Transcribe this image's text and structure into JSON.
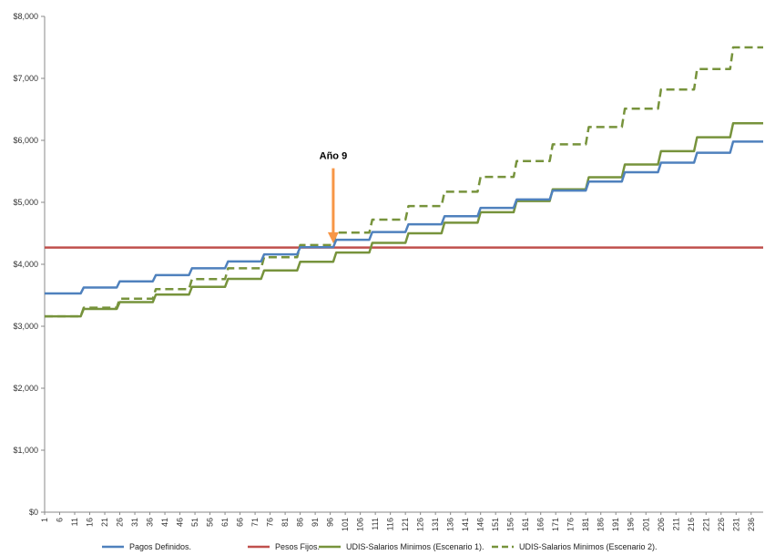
{
  "chart_data": {
    "type": "line",
    "title": "",
    "xlabel": "",
    "ylabel": "",
    "x_range": [
      1,
      240
    ],
    "ylim": [
      0,
      8000
    ],
    "y_ticks": [
      "$0",
      "$1,000",
      "$2,000",
      "$3,000",
      "$4,000",
      "$5,000",
      "$6,000",
      "$7,000",
      "$8,000"
    ],
    "x_tick_labels": [
      "1",
      "6",
      "11",
      "16",
      "21",
      "26",
      "31",
      "36",
      "41",
      "46",
      "51",
      "56",
      "61",
      "66",
      "71",
      "76",
      "81",
      "86",
      "91",
      "96",
      "101",
      "106",
      "111",
      "116",
      "121",
      "126",
      "131",
      "136",
      "141",
      "146",
      "151",
      "156",
      "161",
      "166",
      "171",
      "176",
      "181",
      "186",
      "191",
      "196",
      "201",
      "206",
      "211",
      "216",
      "221",
      "226",
      "231",
      "236"
    ],
    "grid": false,
    "legend_position": "bottom",
    "annotation": {
      "text": "Año 9",
      "x": 97,
      "y": 4300,
      "color": "#f79646"
    },
    "series": [
      {
        "name": "Pagos Definidos.",
        "color": "#4f81bd",
        "dash": false,
        "step_months": 12,
        "values": [
          3530,
          3625,
          3725,
          3825,
          3935,
          4045,
          4160,
          4275,
          4395,
          4520,
          4645,
          4775,
          4910,
          5045,
          5190,
          5335,
          5485,
          5640,
          5800,
          5980
        ]
      },
      {
        "name": "Pesos Fijos.",
        "color": "#c0504d",
        "dash": false,
        "step_months": 12,
        "values": [
          4270,
          4270,
          4270,
          4270,
          4270,
          4270,
          4270,
          4270,
          4270,
          4270,
          4270,
          4270,
          4270,
          4270,
          4270,
          4270,
          4270,
          4270,
          4270,
          4270
        ]
      },
      {
        "name": "UDIS-Salarios Minimos (Escenario 1).",
        "color": "#77933c",
        "dash": false,
        "step_months": 12,
        "values": [
          3160,
          3280,
          3390,
          3510,
          3635,
          3765,
          3900,
          4040,
          4190,
          4345,
          4500,
          4670,
          4840,
          5020,
          5210,
          5405,
          5610,
          5825,
          6050,
          6275
        ]
      },
      {
        "name": "UDIS-Salarios Minimos (Escenario 2).",
        "color": "#77933c",
        "dash": true,
        "step_months": 12,
        "values": [
          3160,
          3300,
          3445,
          3600,
          3760,
          3935,
          4115,
          4310,
          4510,
          4720,
          4940,
          5170,
          5410,
          5665,
          5935,
          6215,
          6510,
          6820,
          7150,
          7500
        ]
      }
    ]
  }
}
